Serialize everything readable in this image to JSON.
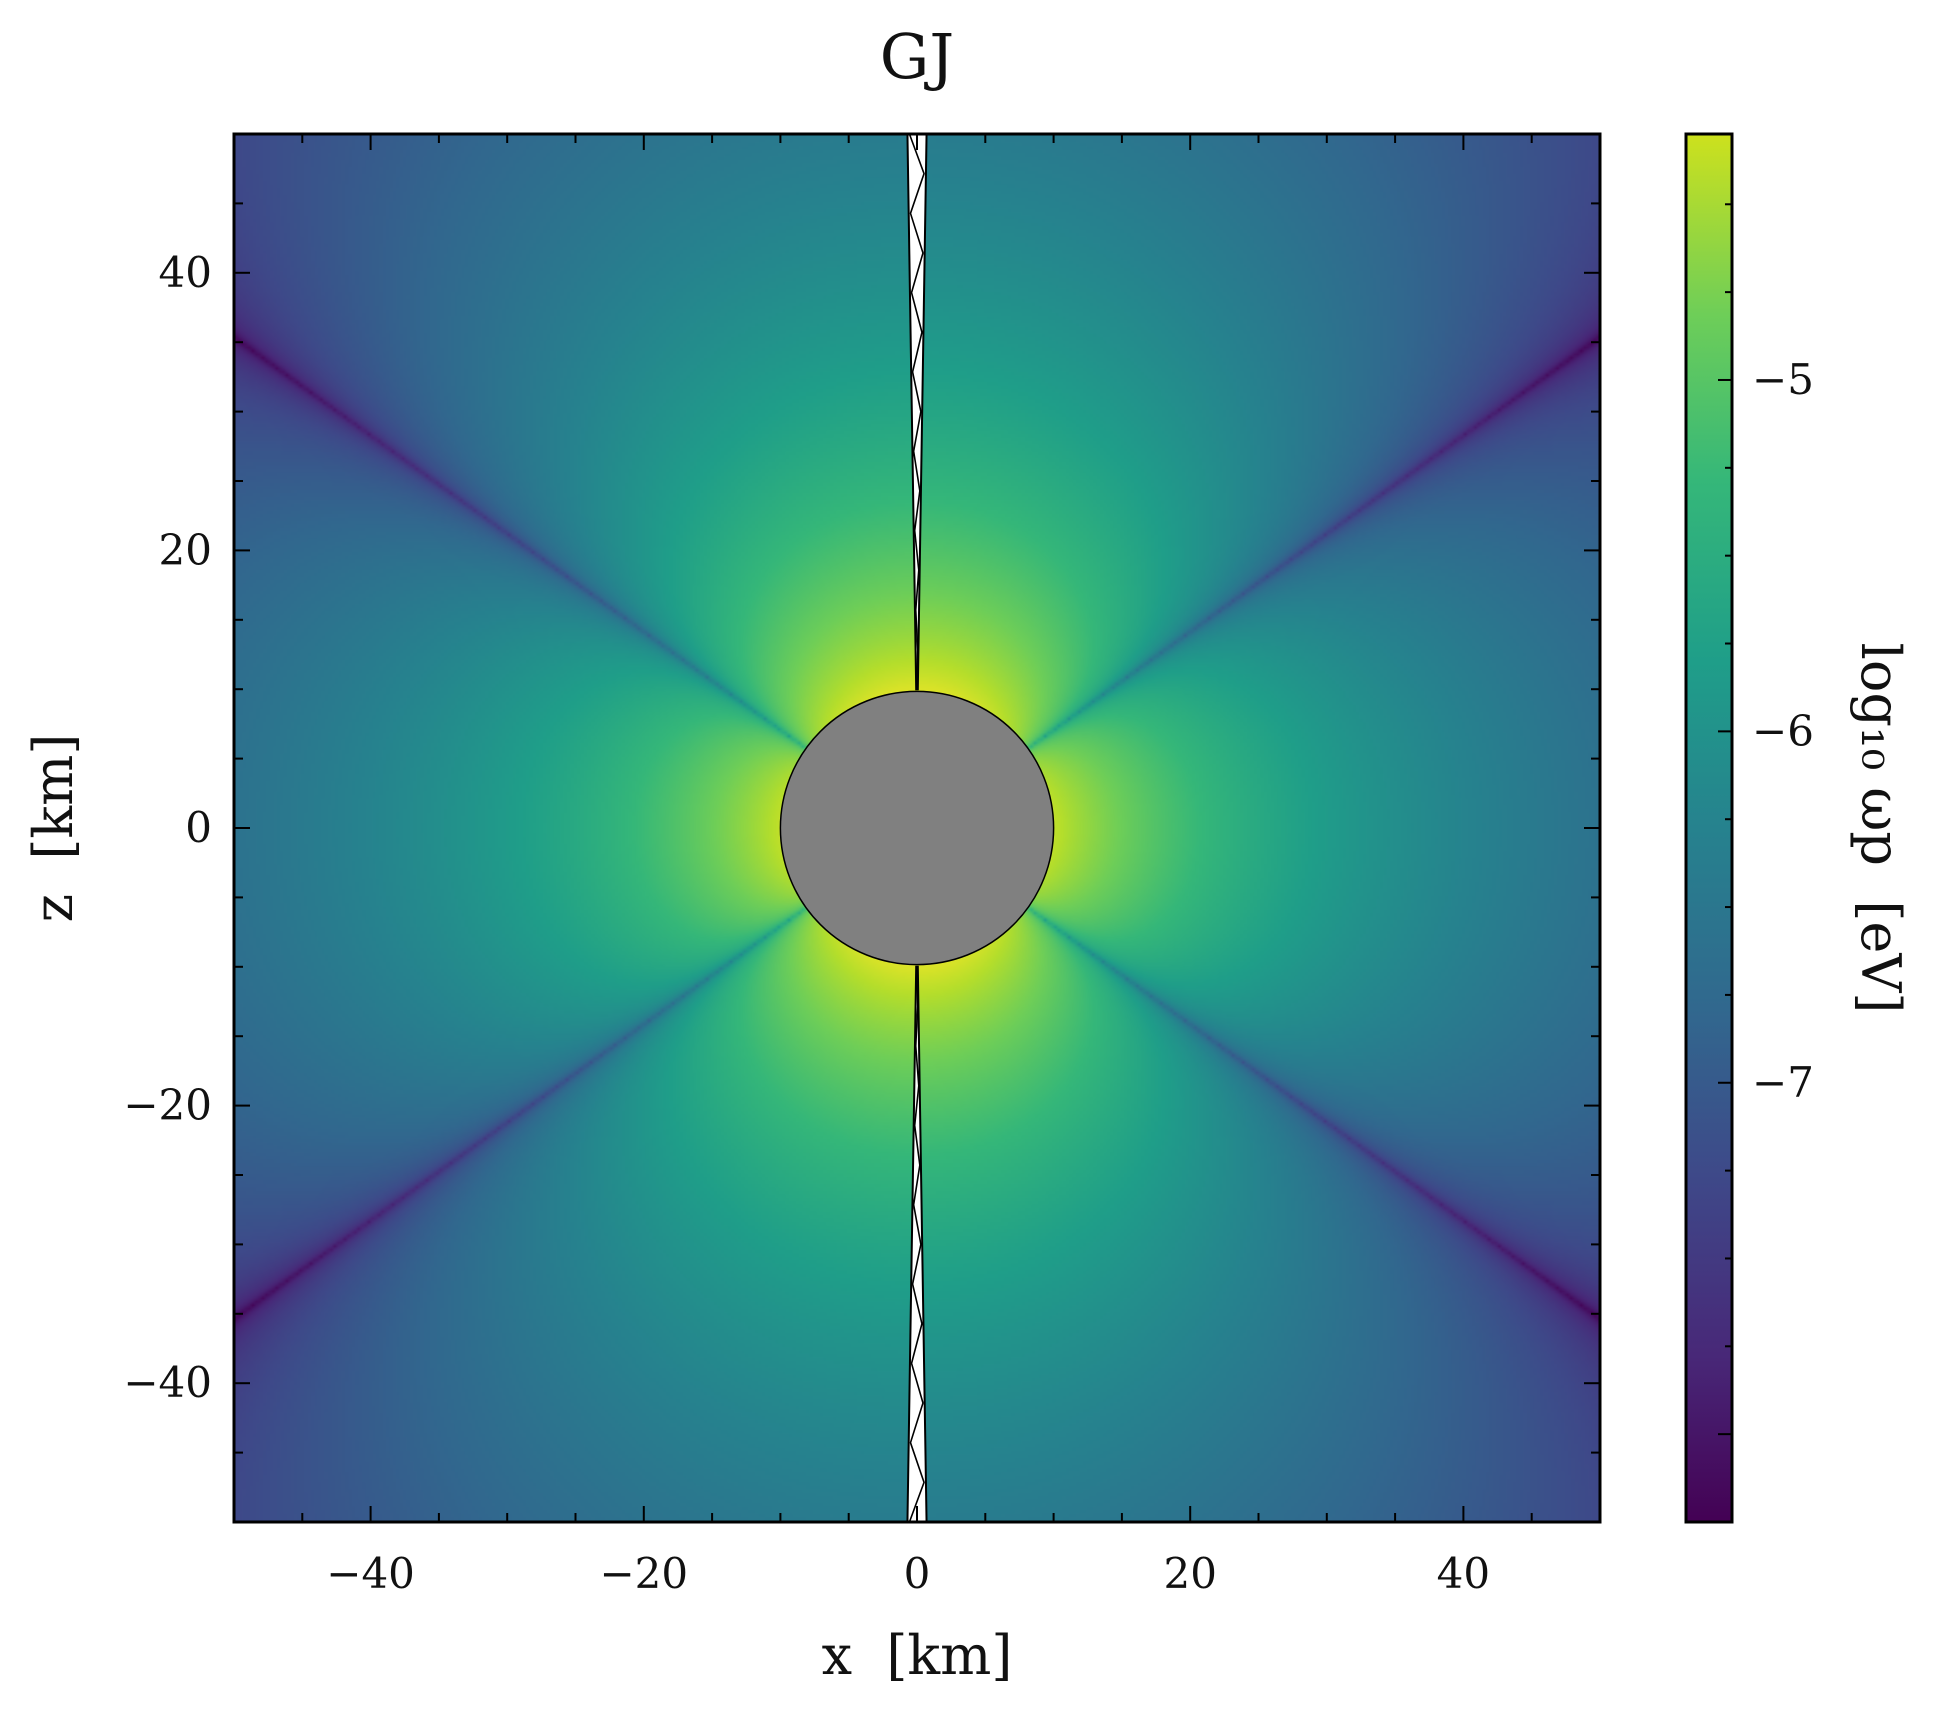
{
  "chart_data": {
    "type": "heatmap",
    "title": "GJ",
    "xlabel": "x  [km]",
    "ylabel": "z  [km]",
    "xlim": [
      -50,
      50
    ],
    "ylim": [
      -50,
      50
    ],
    "x_ticks": [
      {
        "value": -40,
        "label": "−40"
      },
      {
        "value": -20,
        "label": "−20"
      },
      {
        "value": 0,
        "label": "0"
      },
      {
        "value": 20,
        "label": "20"
      },
      {
        "value": 40,
        "label": "40"
      }
    ],
    "y_ticks": [
      {
        "value": 40,
        "label": "40"
      },
      {
        "value": 20,
        "label": "20"
      },
      {
        "value": 0,
        "label": "0"
      },
      {
        "value": -20,
        "label": "−20"
      },
      {
        "value": -40,
        "label": "−40"
      }
    ],
    "colorbar": {
      "label": "log₁₀ ωp  [eV]",
      "colormap": "viridis",
      "range": [
        -8.25,
        -4.3
      ],
      "ticks": [
        {
          "value": -5,
          "label": "−5"
        },
        {
          "value": -6,
          "label": "−6"
        },
        {
          "value": -7,
          "label": "−7"
        }
      ]
    },
    "field": {
      "description_max_log": -4.5,
      "star_radius_km": 10,
      "null_cone_half_angle_deg": 35.3
    },
    "star": {
      "center": [
        0,
        0
      ],
      "radius": 10,
      "color": "#808080"
    },
    "polar_gap": {
      "color": "#ffffff",
      "hatch": "zigzag"
    }
  }
}
